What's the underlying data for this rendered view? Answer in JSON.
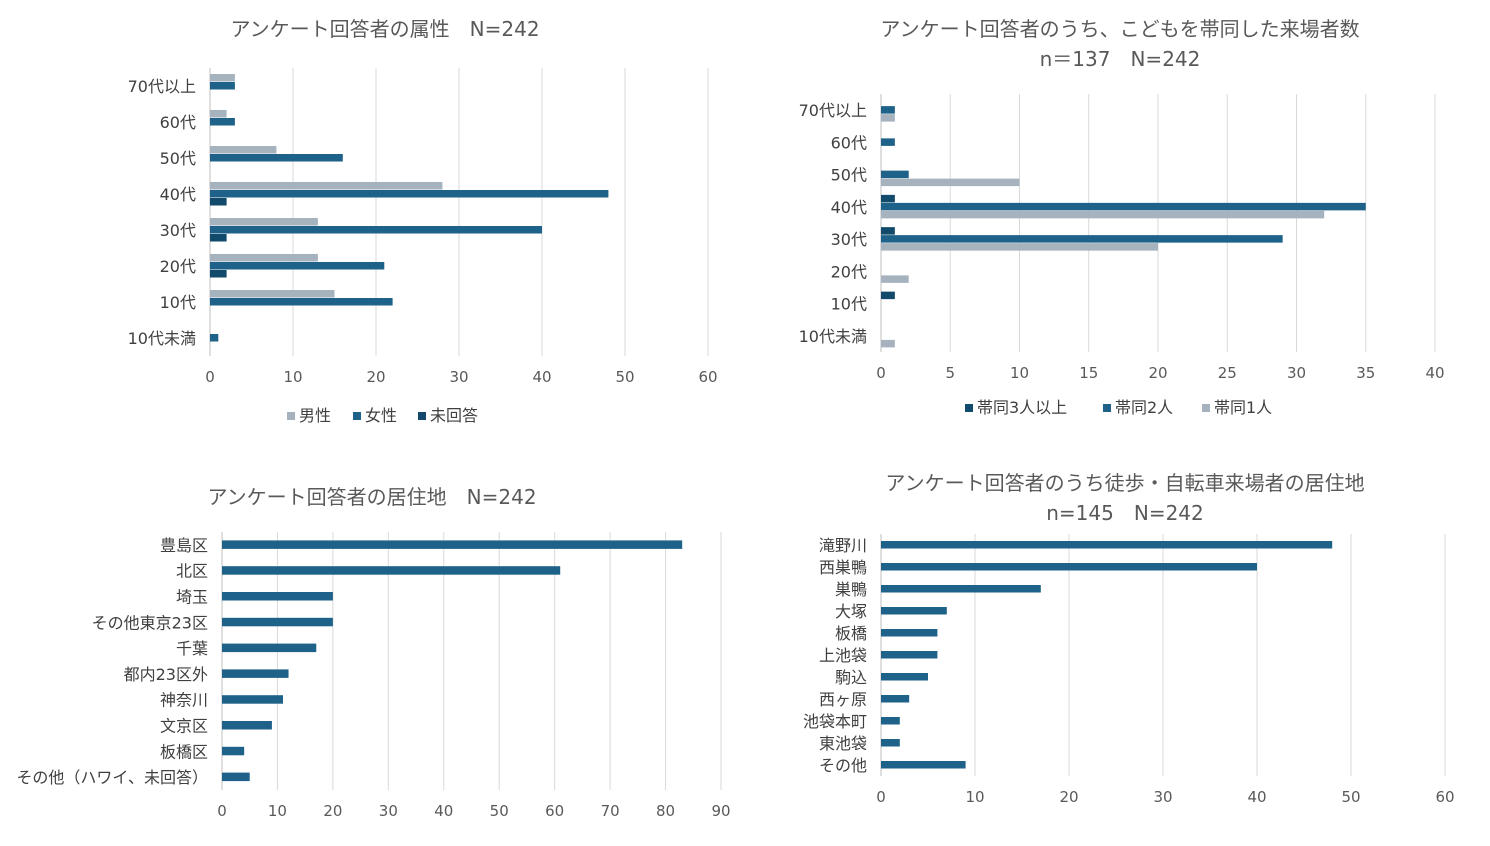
{
  "chart_data": [
    {
      "type": "bar",
      "orientation": "horizontal",
      "title": "アンケート回答者の属性　N=242",
      "subtitle": "",
      "categories": [
        "70代以上",
        "60代",
        "50代",
        "40代",
        "30代",
        "20代",
        "10代",
        "10代未満"
      ],
      "series": [
        {
          "name": "男性",
          "color": "#a6b3bf",
          "values": [
            3,
            2,
            8,
            28,
            13,
            13,
            15,
            0
          ]
        },
        {
          "name": "女性",
          "color": "#1f6289",
          "values": [
            3,
            3,
            16,
            48,
            40,
            21,
            22,
            1
          ]
        },
        {
          "name": "未回答",
          "color": "#124a6b",
          "values": [
            0,
            0,
            0,
            2,
            2,
            2,
            0,
            0
          ]
        }
      ],
      "xlim": [
        0,
        60
      ],
      "ticks": [
        0,
        10,
        20,
        30,
        40,
        50,
        60
      ],
      "grid": true,
      "legend_position": "bottom"
    },
    {
      "type": "bar",
      "orientation": "horizontal",
      "title": "アンケート回答者のうち、こどもを帯同した来場者数",
      "subtitle": "n＝137　N=242",
      "categories": [
        "70代以上",
        "60代",
        "50代",
        "40代",
        "30代",
        "20代",
        "10代",
        "10代未満"
      ],
      "series": [
        {
          "name": "帯同3人以上",
          "color": "#124a6b",
          "values": [
            0,
            0,
            0,
            1,
            1,
            0,
            1,
            0
          ]
        },
        {
          "name": "帯同2人",
          "color": "#1f6289",
          "values": [
            1,
            1,
            2,
            35,
            29,
            0,
            0,
            0
          ]
        },
        {
          "name": "帯同1人",
          "color": "#a6b3bf",
          "values": [
            1,
            0,
            10,
            32,
            20,
            2,
            0,
            1
          ]
        }
      ],
      "xlim": [
        0,
        40
      ],
      "ticks": [
        0,
        5,
        10,
        15,
        20,
        25,
        30,
        35,
        40
      ],
      "grid": true,
      "legend_position": "bottom"
    },
    {
      "type": "bar",
      "orientation": "horizontal",
      "title": "アンケート回答者の居住地　N=242",
      "subtitle": "",
      "categories": [
        "豊島区",
        "北区",
        "埼玉",
        "その他東京23区",
        "千葉",
        "都内23区外",
        "神奈川",
        "文京区",
        "板橋区",
        "その他（ハワイ、未回答）"
      ],
      "series": [
        {
          "name": "",
          "color": "#1f6289",
          "values": [
            83,
            61,
            20,
            20,
            17,
            12,
            11,
            9,
            4,
            5
          ]
        }
      ],
      "xlim": [
        0,
        90
      ],
      "ticks": [
        0,
        10,
        20,
        30,
        40,
        50,
        60,
        70,
        80,
        90
      ],
      "grid": true,
      "legend_position": "none"
    },
    {
      "type": "bar",
      "orientation": "horizontal",
      "title": "アンケート回答者のうち徒歩・自転車来場者の居住地",
      "subtitle": "n=145　N=242",
      "categories": [
        "滝野川",
        "西巣鴨",
        "巣鴨",
        "大塚",
        "板橋",
        "上池袋",
        "駒込",
        "西ヶ原",
        "池袋本町",
        "東池袋",
        "その他"
      ],
      "series": [
        {
          "name": "",
          "color": "#1f6289",
          "values": [
            48,
            40,
            17,
            7,
            6,
            6,
            5,
            3,
            2,
            2,
            9
          ]
        }
      ],
      "xlim": [
        0,
        60
      ],
      "ticks": [
        0,
        10,
        20,
        30,
        40,
        50,
        60
      ],
      "grid": true,
      "legend_position": "none"
    }
  ]
}
